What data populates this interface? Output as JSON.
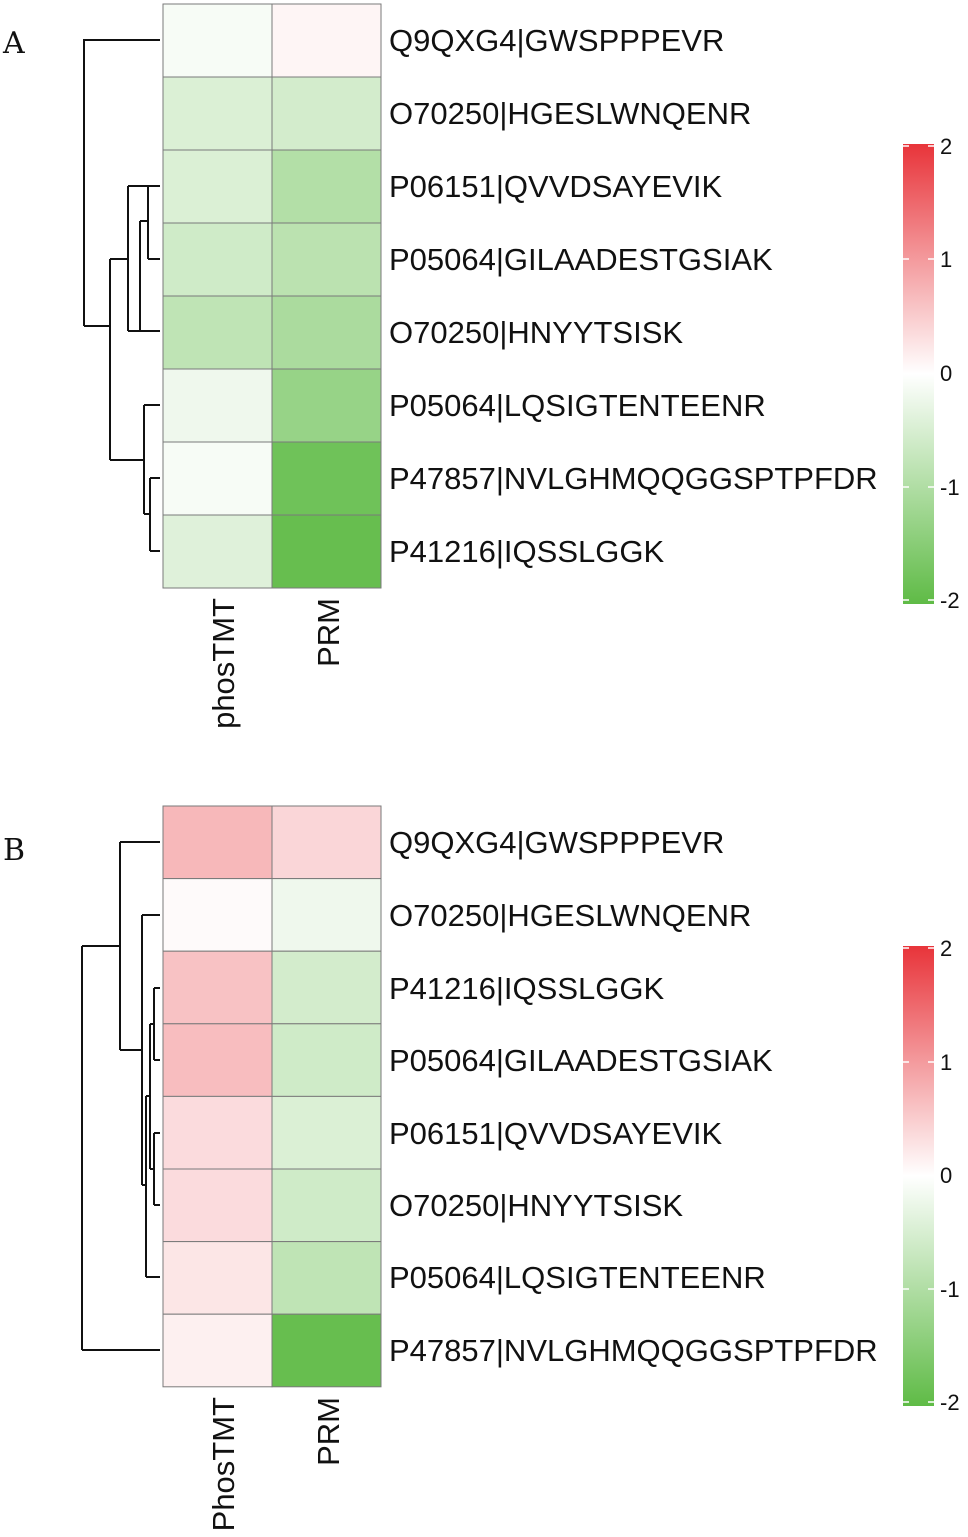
{
  "colors": {
    "high": "#e8343a",
    "mid": "#ffffff",
    "low": "#5fbb46"
  },
  "chart_data": [
    {
      "type": "heatmap",
      "panel": "A",
      "columns": [
        "phosTMT",
        "PRM"
      ],
      "rows": [
        "Q9QXG4|GWSPPPEVR",
        "O70250|HGESLWNQENR",
        "P06151|QVVDSAYEVIK",
        "P05064|GILAADESTGSIAK",
        "O70250|HNYYTSISK",
        "P05064|LQSIGTENTEENR",
        "P47857|NVLGHMQQGGSPTPFDR",
        "P41216|IQSSLGGK"
      ],
      "values": [
        [
          -0.1,
          0.1
        ],
        [
          -0.45,
          -0.55
        ],
        [
          -0.45,
          -0.95
        ],
        [
          -0.6,
          -0.85
        ],
        [
          -0.8,
          -1.05
        ],
        [
          -0.2,
          -1.3
        ],
        [
          -0.1,
          -1.8
        ],
        [
          -0.4,
          -1.9
        ]
      ],
      "legend": {
        "min": -2,
        "max": 2,
        "ticks": [
          "2",
          "1",
          "0",
          "-1",
          "-2"
        ]
      },
      "grid": true
    },
    {
      "type": "heatmap",
      "panel": "B",
      "columns": [
        "PhosTMT",
        "PRM"
      ],
      "rows": [
        "Q9QXG4|GWSPPPEVR",
        "O70250|HGESLWNQENR",
        "P41216|IQSSLGGK",
        "P05064|GILAADESTGSIAK",
        "P06151|QVVDSAYEVIK",
        "O70250|HNYYTSISK",
        "P05064|LQSIGTENTEENR",
        "P47857|NVLGHMQQGGSPTPFDR"
      ],
      "values": [
        [
          0.7,
          0.4
        ],
        [
          0.05,
          -0.2
        ],
        [
          0.6,
          -0.55
        ],
        [
          0.65,
          -0.6
        ],
        [
          0.35,
          -0.45
        ],
        [
          0.35,
          -0.6
        ],
        [
          0.25,
          -0.8
        ],
        [
          0.15,
          -1.9
        ]
      ],
      "legend": {
        "min": -2,
        "max": 2,
        "ticks": [
          "2",
          "1",
          "0",
          "-1",
          "-2"
        ]
      },
      "grid": true
    }
  ]
}
